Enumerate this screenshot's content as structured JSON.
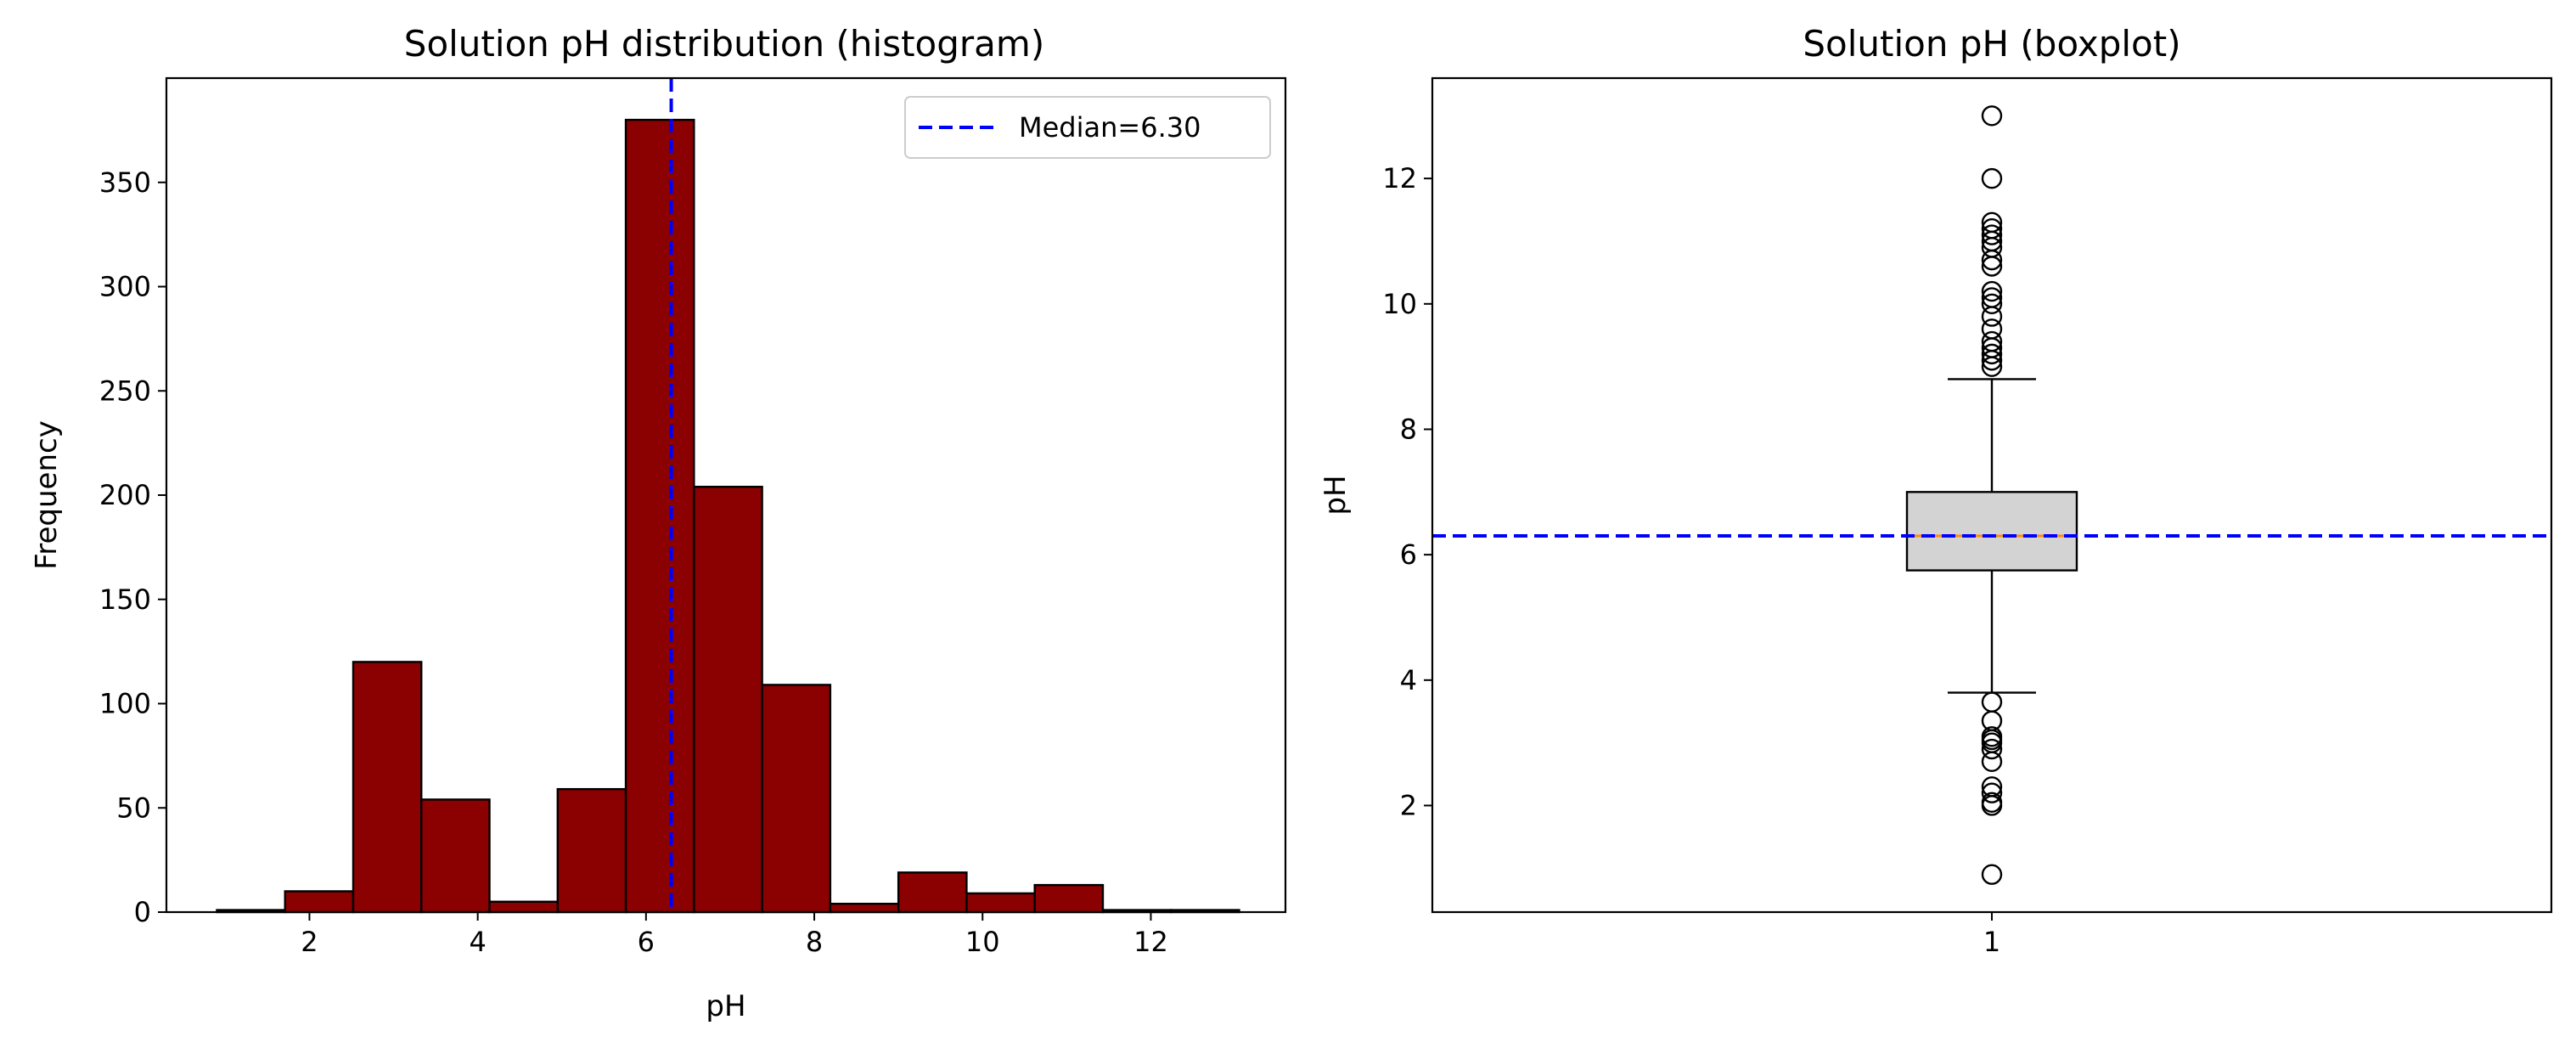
{
  "chart_data": [
    {
      "type": "bar",
      "subtype": "histogram",
      "title": "Solution pH distribution (histogram)",
      "xlabel": "pH",
      "ylabel": "Frequency",
      "xlim": [
        0.3,
        13.6
      ],
      "ylim": [
        0,
        400
      ],
      "xticks": [
        2,
        4,
        6,
        8,
        10,
        12
      ],
      "yticks": [
        0,
        50,
        100,
        150,
        200,
        250,
        300,
        350
      ],
      "bin_edges": [
        0.9,
        1.71,
        2.52,
        3.33,
        4.14,
        4.95,
        5.76,
        6.57,
        7.38,
        8.19,
        9.0,
        9.81,
        10.62,
        11.43,
        12.24,
        13.05
      ],
      "values": [
        1,
        10,
        120,
        54,
        5,
        59,
        380,
        204,
        109,
        4,
        19,
        9,
        13,
        1,
        1
      ],
      "bar_color": "#8b0000",
      "edge_color": "#000000",
      "grid": false,
      "reference_line": {
        "label": "Median=6.30",
        "x": 6.3,
        "color": "#0000ff",
        "style": "dashed"
      },
      "legend": {
        "position": "upper right",
        "entries": [
          "Median=6.30"
        ]
      }
    },
    {
      "type": "box",
      "title": "Solution pH (boxplot)",
      "xlabel": "",
      "ylabel": "pH",
      "xticks": [
        "1"
      ],
      "ylim": [
        0.3,
        13.6
      ],
      "yticks": [
        2,
        4,
        6,
        8,
        10,
        12
      ],
      "q1": 5.75,
      "median": 6.3,
      "q3": 7.0,
      "whisker_low": 3.8,
      "whisker_high": 8.8,
      "outliers": [
        0.9,
        2.0,
        2.05,
        2.2,
        2.3,
        2.7,
        2.9,
        3.0,
        3.05,
        3.1,
        3.35,
        3.65,
        9.0,
        9.1,
        9.2,
        9.3,
        9.4,
        9.6,
        9.8,
        10.0,
        10.1,
        10.2,
        10.6,
        10.7,
        10.9,
        11.0,
        11.1,
        11.2,
        11.3,
        12.0,
        13.0
      ],
      "box_color": "#d3d3d3",
      "median_color": "#ff8c00",
      "grid": false,
      "reference_line": {
        "y": 6.3,
        "color": "#0000ff",
        "style": "dashed"
      }
    }
  ]
}
